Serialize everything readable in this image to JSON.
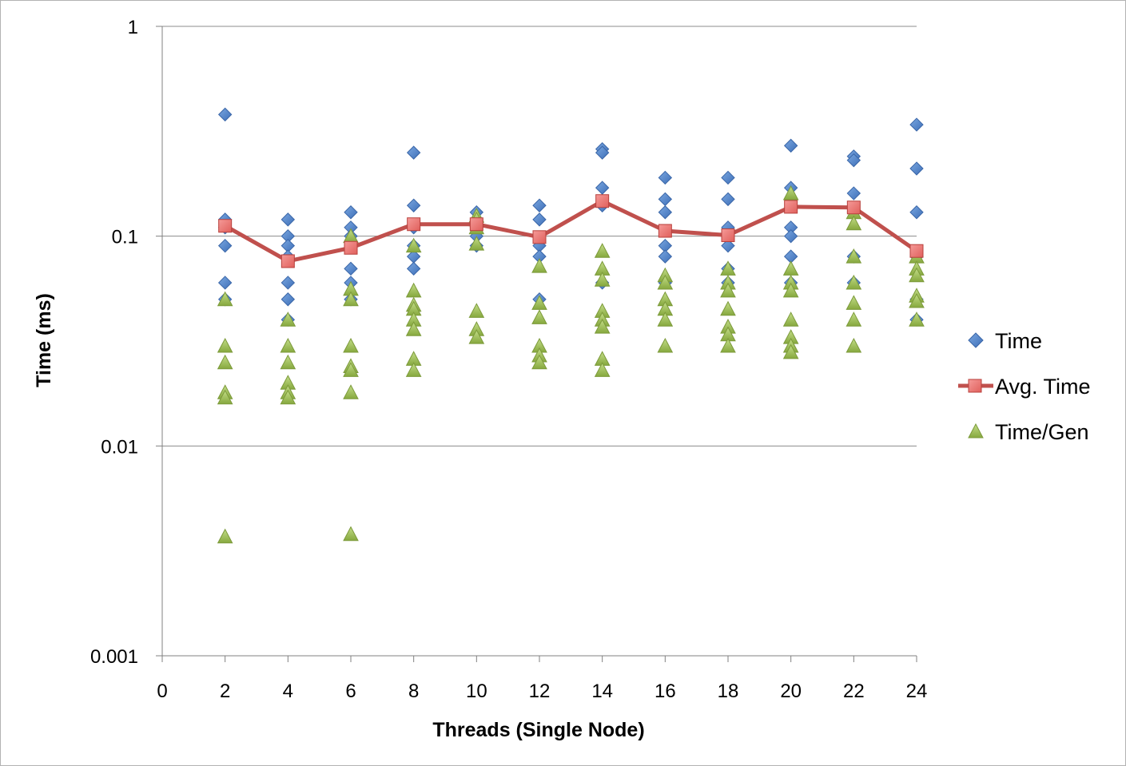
{
  "chart_data": {
    "type": "scatter",
    "xlabel": "Threads (Single Node)",
    "ylabel": "Time (ms)",
    "xlim": [
      0,
      24
    ],
    "ylim": [
      0.001,
      1
    ],
    "y_scale": "log",
    "x_ticks": [
      "0",
      "2",
      "4",
      "6",
      "8",
      "10",
      "12",
      "14",
      "16",
      "18",
      "20",
      "22",
      "24"
    ],
    "y_ticks": [
      {
        "value": 1,
        "label": "1"
      },
      {
        "value": 0.1,
        "label": "0.1"
      },
      {
        "value": 0.01,
        "label": "0.01"
      },
      {
        "value": 0.001,
        "label": "0.001"
      }
    ],
    "grid": "horizontal major",
    "legend_position": "right",
    "series": [
      {
        "name": "Time",
        "marker": "diamond",
        "color": "#4f81bd",
        "points": [
          [
            2,
            0.38
          ],
          [
            2,
            0.12
          ],
          [
            2,
            0.11
          ],
          [
            2,
            0.09
          ],
          [
            2,
            0.06
          ],
          [
            2,
            0.05
          ],
          [
            4,
            0.12
          ],
          [
            4,
            0.1
          ],
          [
            4,
            0.09
          ],
          [
            4,
            0.08
          ],
          [
            4,
            0.06
          ],
          [
            4,
            0.05
          ],
          [
            4,
            0.04
          ],
          [
            6,
            0.13
          ],
          [
            6,
            0.11
          ],
          [
            6,
            0.1
          ],
          [
            6,
            0.09
          ],
          [
            6,
            0.07
          ],
          [
            6,
            0.06
          ],
          [
            6,
            0.05
          ],
          [
            8,
            0.25
          ],
          [
            8,
            0.14
          ],
          [
            8,
            0.11
          ],
          [
            8,
            0.09
          ],
          [
            8,
            0.08
          ],
          [
            8,
            0.07
          ],
          [
            10,
            0.13
          ],
          [
            10,
            0.12
          ],
          [
            10,
            0.11
          ],
          [
            10,
            0.1
          ],
          [
            10,
            0.09
          ],
          [
            12,
            0.14
          ],
          [
            12,
            0.12
          ],
          [
            12,
            0.09
          ],
          [
            12,
            0.08
          ],
          [
            12,
            0.05
          ],
          [
            14,
            0.26
          ],
          [
            14,
            0.25
          ],
          [
            14,
            0.17
          ],
          [
            14,
            0.14
          ],
          [
            14,
            0.06
          ],
          [
            16,
            0.19
          ],
          [
            16,
            0.15
          ],
          [
            16,
            0.13
          ],
          [
            16,
            0.09
          ],
          [
            16,
            0.08
          ],
          [
            16,
            0.06
          ],
          [
            18,
            0.19
          ],
          [
            18,
            0.15
          ],
          [
            18,
            0.11
          ],
          [
            18,
            0.09
          ],
          [
            18,
            0.07
          ],
          [
            18,
            0.06
          ],
          [
            20,
            0.27
          ],
          [
            20,
            0.17
          ],
          [
            20,
            0.11
          ],
          [
            20,
            0.1
          ],
          [
            20,
            0.08
          ],
          [
            20,
            0.06
          ],
          [
            22,
            0.24
          ],
          [
            22,
            0.23
          ],
          [
            22,
            0.16
          ],
          [
            22,
            0.13
          ],
          [
            22,
            0.08
          ],
          [
            22,
            0.06
          ],
          [
            24,
            0.34
          ],
          [
            24,
            0.21
          ],
          [
            24,
            0.13
          ],
          [
            24,
            0.08
          ],
          [
            24,
            0.05
          ],
          [
            24,
            0.04
          ]
        ]
      },
      {
        "name": "Avg. Time",
        "marker": "square",
        "line": true,
        "color": "#c0504d",
        "points": [
          [
            2,
            0.112
          ],
          [
            4,
            0.076
          ],
          [
            6,
            0.088
          ],
          [
            8,
            0.114
          ],
          [
            10,
            0.114
          ],
          [
            12,
            0.099
          ],
          [
            14,
            0.147
          ],
          [
            16,
            0.106
          ],
          [
            18,
            0.101
          ],
          [
            20,
            0.138
          ],
          [
            22,
            0.137
          ],
          [
            24,
            0.085
          ]
        ]
      },
      {
        "name": "Time/Gen",
        "marker": "triangle",
        "color": "#9bbb59",
        "points": [
          [
            2,
            0.05
          ],
          [
            2,
            0.03
          ],
          [
            2,
            0.025
          ],
          [
            2,
            0.018
          ],
          [
            2,
            0.017
          ],
          [
            2,
            0.0037
          ],
          [
            4,
            0.04
          ],
          [
            4,
            0.03
          ],
          [
            4,
            0.025
          ],
          [
            4,
            0.02
          ],
          [
            4,
            0.018
          ],
          [
            4,
            0.017
          ],
          [
            6,
            0.1
          ],
          [
            6,
            0.056
          ],
          [
            6,
            0.05
          ],
          [
            6,
            0.03
          ],
          [
            6,
            0.024
          ],
          [
            6,
            0.023
          ],
          [
            6,
            0.018
          ],
          [
            6,
            0.0038
          ],
          [
            8,
            0.09
          ],
          [
            8,
            0.055
          ],
          [
            8,
            0.047
          ],
          [
            8,
            0.045
          ],
          [
            8,
            0.04
          ],
          [
            8,
            0.036
          ],
          [
            8,
            0.026
          ],
          [
            8,
            0.023
          ],
          [
            10,
            0.125
          ],
          [
            10,
            0.12
          ],
          [
            10,
            0.11
          ],
          [
            10,
            0.092
          ],
          [
            10,
            0.044
          ],
          [
            10,
            0.036
          ],
          [
            10,
            0.033
          ],
          [
            12,
            0.072
          ],
          [
            12,
            0.048
          ],
          [
            12,
            0.041
          ],
          [
            12,
            0.03
          ],
          [
            12,
            0.027
          ],
          [
            12,
            0.025
          ],
          [
            14,
            0.085
          ],
          [
            14,
            0.07
          ],
          [
            14,
            0.062
          ],
          [
            14,
            0.044
          ],
          [
            14,
            0.04
          ],
          [
            14,
            0.037
          ],
          [
            14,
            0.026
          ],
          [
            14,
            0.023
          ],
          [
            16,
            0.065
          ],
          [
            16,
            0.06
          ],
          [
            16,
            0.05
          ],
          [
            16,
            0.045
          ],
          [
            16,
            0.04
          ],
          [
            16,
            0.03
          ],
          [
            18,
            0.07
          ],
          [
            18,
            0.06
          ],
          [
            18,
            0.055
          ],
          [
            18,
            0.045
          ],
          [
            18,
            0.037
          ],
          [
            18,
            0.034
          ],
          [
            18,
            0.03
          ],
          [
            20,
            0.16
          ],
          [
            20,
            0.07
          ],
          [
            20,
            0.06
          ],
          [
            20,
            0.055
          ],
          [
            20,
            0.04
          ],
          [
            20,
            0.033
          ],
          [
            20,
            0.03
          ],
          [
            20,
            0.028
          ],
          [
            22,
            0.13
          ],
          [
            22,
            0.115
          ],
          [
            22,
            0.08
          ],
          [
            22,
            0.06
          ],
          [
            22,
            0.048
          ],
          [
            22,
            0.04
          ],
          [
            22,
            0.03
          ],
          [
            24,
            0.08
          ],
          [
            24,
            0.07
          ],
          [
            24,
            0.065
          ],
          [
            24,
            0.052
          ],
          [
            24,
            0.049
          ],
          [
            24,
            0.04
          ]
        ]
      }
    ]
  }
}
